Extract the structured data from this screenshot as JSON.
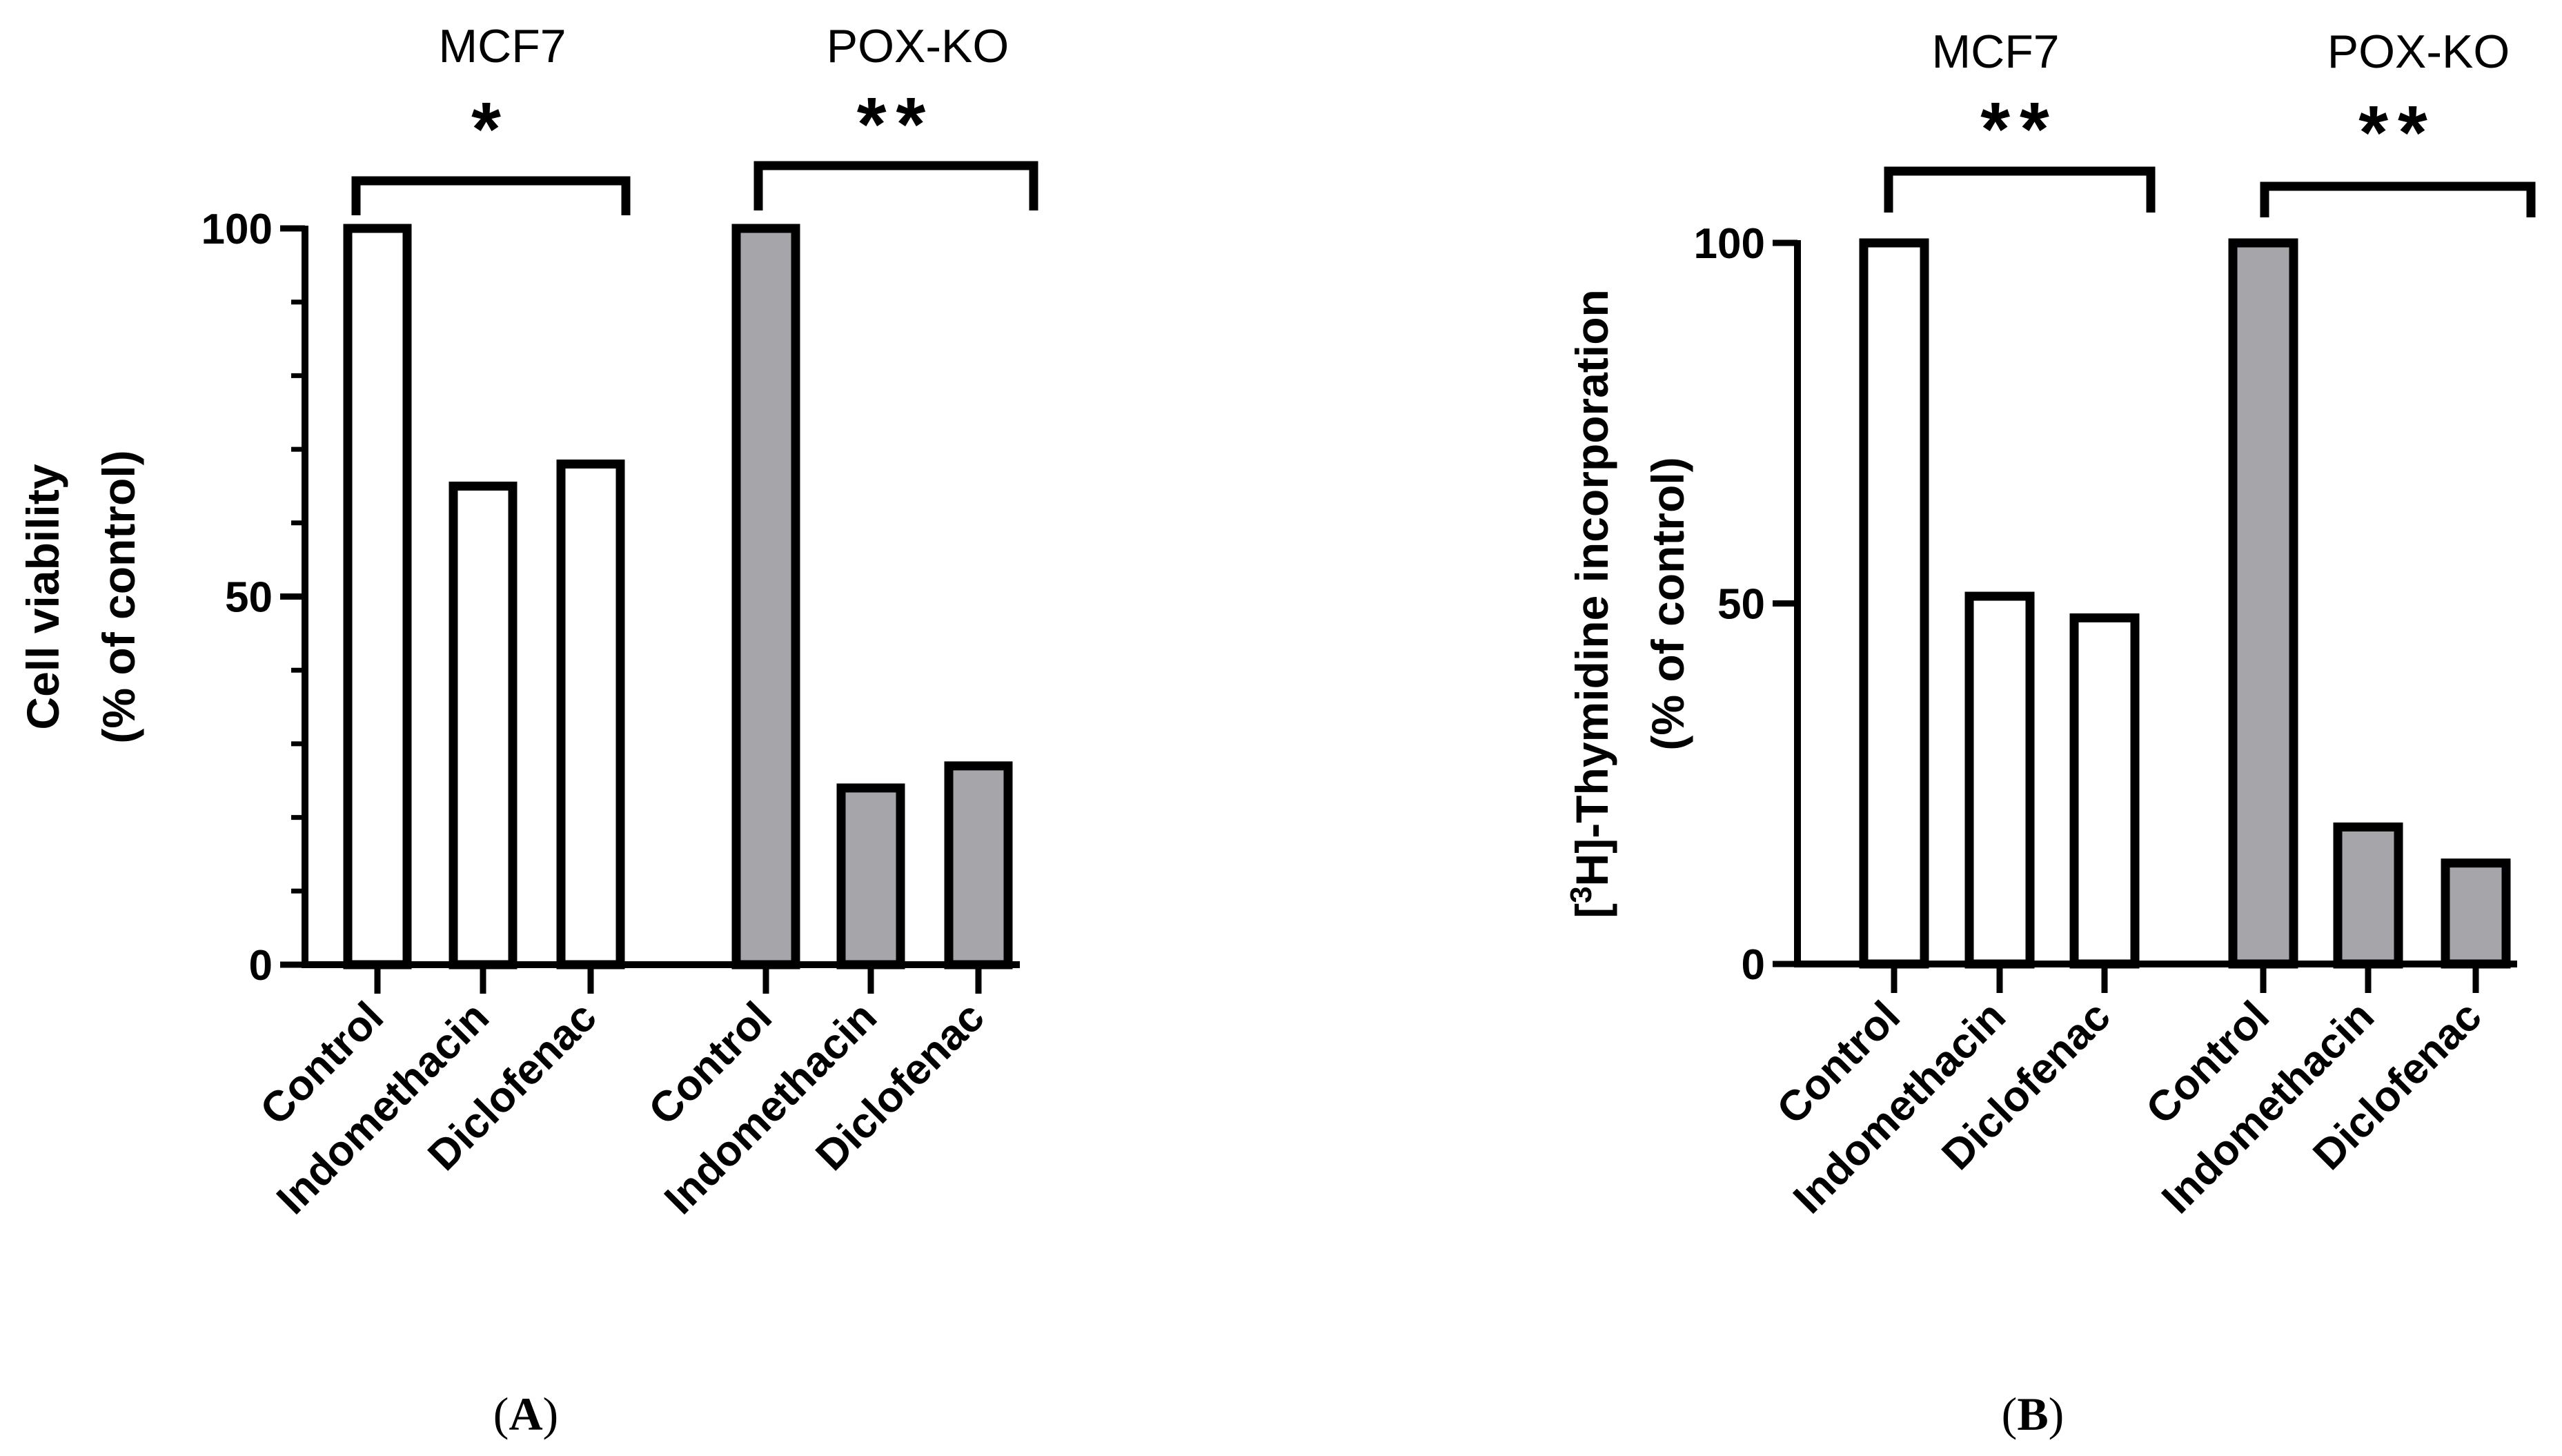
{
  "chart_data": [
    {
      "type": "bar",
      "panel_label": "A",
      "categories": [
        "Control",
        "Indomethacin",
        "Diclofenac",
        "Control",
        "Indomethacin",
        "Diclofenac"
      ],
      "groups": [
        {
          "name": "MCF7",
          "fill": "#ffffff",
          "significance": "*",
          "values": [
            100,
            65,
            68
          ]
        },
        {
          "name": "POX-KO",
          "fill": "#a6a6aa",
          "significance": "**",
          "values": [
            100,
            24,
            27
          ]
        }
      ],
      "ylabel": [
        "Cell viability",
        "(% of control)"
      ],
      "ylim": [
        0,
        100
      ],
      "yticks": [
        0,
        50,
        100
      ]
    },
    {
      "type": "bar",
      "panel_label": "B",
      "categories": [
        "Control",
        "Indomethacin",
        "Diclofenac",
        "Control",
        "Indomethacin",
        "Diclofenac"
      ],
      "groups": [
        {
          "name": "MCF7",
          "fill": "#ffffff",
          "significance": "**",
          "values": [
            100,
            51,
            48
          ]
        },
        {
          "name": "POX-KO",
          "fill": "#a6a6aa",
          "significance": "**",
          "values": [
            100,
            19,
            14
          ]
        }
      ],
      "ylabel": [
        "[",
        "3",
        "H]-Thymidine incorporation",
        "(% of control)"
      ],
      "ylim": [
        0,
        100
      ],
      "yticks": [
        0,
        50,
        100
      ]
    }
  ]
}
